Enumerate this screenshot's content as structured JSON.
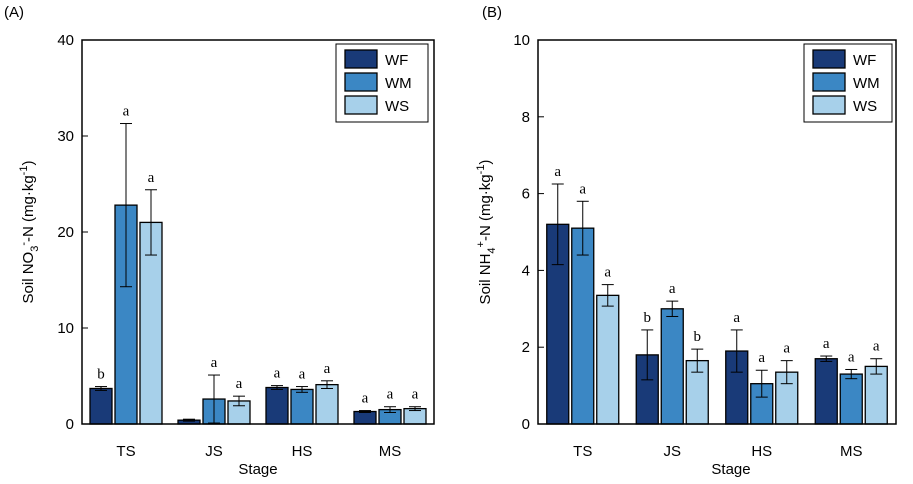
{
  "chart_data": [
    {
      "type": "bar",
      "panel_label": "(A)",
      "categories": [
        "TS",
        "JS",
        "HS",
        "MS"
      ],
      "xlabel": "Stage",
      "ylabel_parts": [
        "Soil NO",
        "3",
        "-",
        "-N (mg·kg",
        "-1",
        ")"
      ],
      "ylim": [
        0,
        40
      ],
      "yticks": [
        0,
        10,
        20,
        30,
        40
      ],
      "ytick_labels": [
        "0",
        "10",
        "20",
        "30",
        "40"
      ],
      "legend_position": "top-right",
      "series": [
        {
          "name": "WF",
          "color": "#193a78",
          "values": [
            3.7,
            0.4,
            3.8,
            1.3
          ],
          "errors": [
            0.2,
            0.1,
            0.2,
            0.1
          ],
          "sig": [
            "b",
            "",
            "a",
            "a"
          ]
        },
        {
          "name": "WM",
          "color": "#3b87c4",
          "values": [
            22.8,
            2.6,
            3.6,
            1.5
          ],
          "errors": [
            8.5,
            2.5,
            0.3,
            0.3
          ],
          "sig": [
            "a",
            "a",
            "a",
            "a"
          ]
        },
        {
          "name": "WS",
          "color": "#a7d0ea",
          "values": [
            21.0,
            2.4,
            4.1,
            1.6
          ],
          "errors": [
            3.4,
            0.5,
            0.4,
            0.2
          ],
          "sig": [
            "a",
            "a",
            "a",
            "a"
          ]
        }
      ]
    },
    {
      "type": "bar",
      "panel_label": "(B)",
      "categories": [
        "TS",
        "JS",
        "HS",
        "MS"
      ],
      "xlabel": "Stage",
      "ylabel_parts": [
        "Soil NH",
        "4",
        "+",
        "-N (mg·kg",
        "-1",
        ")"
      ],
      "ylim": [
        0,
        10
      ],
      "yticks": [
        0,
        2,
        4,
        6,
        8,
        10
      ],
      "ytick_labels": [
        "0",
        "2",
        "4",
        "6",
        "8",
        "10"
      ],
      "legend_position": "top-right",
      "series": [
        {
          "name": "WF",
          "color": "#193a78",
          "values": [
            5.2,
            1.8,
            1.9,
            1.7
          ],
          "errors": [
            1.05,
            0.65,
            0.55,
            0.07
          ],
          "sig": [
            "a",
            "b",
            "a",
            "a"
          ]
        },
        {
          "name": "WM",
          "color": "#3b87c4",
          "values": [
            5.1,
            3.0,
            1.05,
            1.3
          ],
          "errors": [
            0.7,
            0.2,
            0.35,
            0.12
          ],
          "sig": [
            "a",
            "a",
            "a",
            "a"
          ]
        },
        {
          "name": "WS",
          "color": "#a7d0ea",
          "values": [
            3.35,
            1.65,
            1.35,
            1.5
          ],
          "errors": [
            0.28,
            0.3,
            0.3,
            0.2
          ],
          "sig": [
            "a",
            "b",
            "a",
            "a"
          ]
        }
      ]
    }
  ]
}
